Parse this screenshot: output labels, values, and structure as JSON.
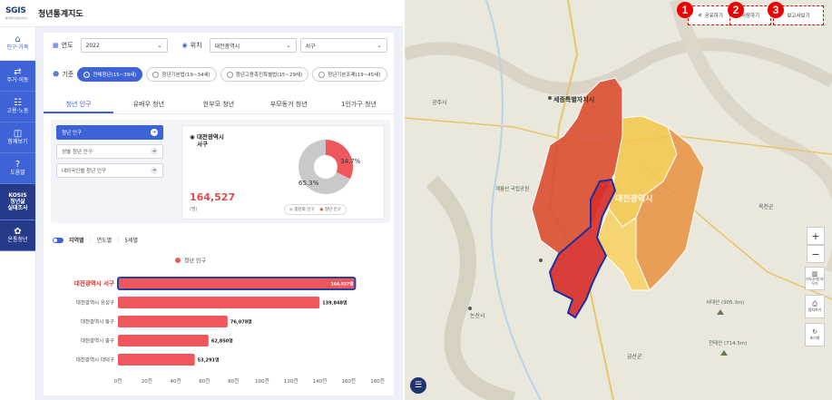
{
  "header": {
    "logo": "SGIS",
    "logo_sub": "통계지리정보서비스",
    "title": "청년통계지도"
  },
  "sidebar": {
    "items": [
      {
        "label": "인구·가족",
        "icon": "house-icon",
        "active": true
      },
      {
        "label": "주거·이동",
        "icon": "move-icon"
      },
      {
        "label": "고용·노동",
        "icon": "work-icon"
      },
      {
        "label": "함께보기",
        "icon": "compare-icon"
      },
      {
        "label": "도움말",
        "icon": "help-icon"
      },
      {
        "label": "KOSIS\n청년삶\n실태조사",
        "icon": "kosis-icon",
        "dark": true
      },
      {
        "label": "온통청년",
        "icon": "youth-icon",
        "dark": true
      }
    ]
  },
  "filters": {
    "year_label": "연도",
    "year_value": "2022",
    "location_label": "위치",
    "sido": "대전광역시",
    "sigungu": "서구",
    "criteria_label": "기준",
    "criteria": [
      "전체청년(15~39세)",
      "청년기본법(19~34세)",
      "청년고용촉진특별법(15~29세)",
      "청년기본조례(19~45세)"
    ]
  },
  "tabs": [
    "청년 인구",
    "유배우 청년",
    "한부모 청년",
    "부모동거 청년",
    "1인가구 청년"
  ],
  "sub_menu": [
    "청년 인구",
    "성별 청년 인구",
    "내외국인별 청년 인구"
  ],
  "stat": {
    "region": "대전광역시",
    "sub_region": "서구",
    "value": "164,527",
    "unit": "(명)",
    "pie_labels": [
      "34.7%",
      "65.3%"
    ],
    "legend": [
      "청년외 인구",
      "청년 인구"
    ]
  },
  "toggle": {
    "options": [
      "지역별",
      "연도별",
      "5세별"
    ]
  },
  "chart_data": {
    "type": "bar",
    "orientation": "horizontal",
    "legend": "청년 인구",
    "categories": [
      "대전광역시 서구",
      "대전광역시 유성구",
      "대전광역시 동구",
      "대전광역시 중구",
      "대전광역시 대덕구"
    ],
    "values": [
      164527,
      139848,
      76078,
      62850,
      53291
    ],
    "value_labels": [
      "164,527명",
      "139,848명",
      "76,078명",
      "62,850명",
      "53,291명"
    ],
    "xticks": [
      "0천",
      "20천",
      "40천",
      "60천",
      "80천",
      "100천",
      "120천",
      "140천",
      "160천",
      "180천"
    ],
    "xlim": [
      0,
      180000
    ],
    "color": "#f0575c",
    "highlight_color": "#2a3fa0"
  },
  "map": {
    "buttons": [
      "공유하기",
      "저장하기",
      "보고서보기"
    ],
    "badges": [
      "1",
      "2",
      "3"
    ],
    "zoom_in": "+",
    "zoom_out": "−",
    "tools": [
      "지도유형 바꾸기",
      "캡처하기",
      "초기화"
    ],
    "labels": [
      "세종특별자치시",
      "계룡산 국립공원",
      "대전광역시",
      "서대산 (905.3m)",
      "천태산 (714.5m)",
      "논산시",
      "공주시",
      "금산군",
      "옥천군"
    ]
  }
}
